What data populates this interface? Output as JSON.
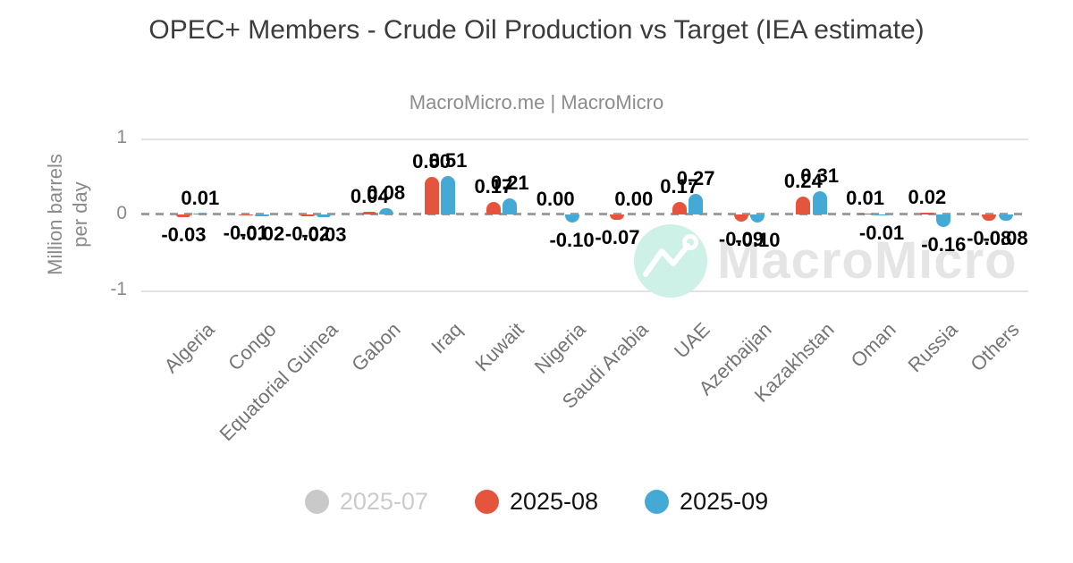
{
  "chart_data": {
    "type": "bar",
    "title": "OPEC+ Members - Crude Oil Production vs Target (IEA estimate)",
    "subtitle": "MacroMicro.me | MacroMicro",
    "ylabel": "Million barrels per day",
    "ylim": [
      -1,
      1
    ],
    "yticks": [
      1,
      0,
      -1
    ],
    "zero_line_style": "dashed",
    "grid": "horizontal",
    "legend_position": "bottom",
    "value_label_decimals": 2,
    "categories": [
      "Algeria",
      "Congo",
      "Equatorial Guinea",
      "Gabon",
      "Iraq",
      "Kuwait",
      "Nigeria",
      "Saudi Arabia",
      "UAE",
      "Azerbaijan",
      "Kazakhstan",
      "Oman",
      "Russia",
      "Others"
    ],
    "series": [
      {
        "name": "2025-07",
        "color": "#c9c9c9",
        "state": "disabled",
        "values": null
      },
      {
        "name": "2025-08",
        "color": "#e5543d",
        "state": "active",
        "values": [
          -0.03,
          -0.01,
          -0.02,
          0.04,
          0.5,
          0.17,
          0.0,
          -0.07,
          0.17,
          -0.09,
          0.24,
          0.01,
          0.02,
          -0.08
        ]
      },
      {
        "name": "2025-09",
        "color": "#44aad5",
        "state": "active",
        "values": [
          0.01,
          -0.02,
          -0.03,
          0.08,
          0.51,
          0.21,
          -0.1,
          0.0,
          0.27,
          -0.1,
          0.31,
          -0.01,
          -0.16,
          -0.08
        ]
      }
    ]
  },
  "watermark": {
    "text": "MacroMicro",
    "icon": "line-chart-zigzag-icon",
    "circle_color": "#cdf1e6",
    "text_color": "#e5e5e5"
  }
}
